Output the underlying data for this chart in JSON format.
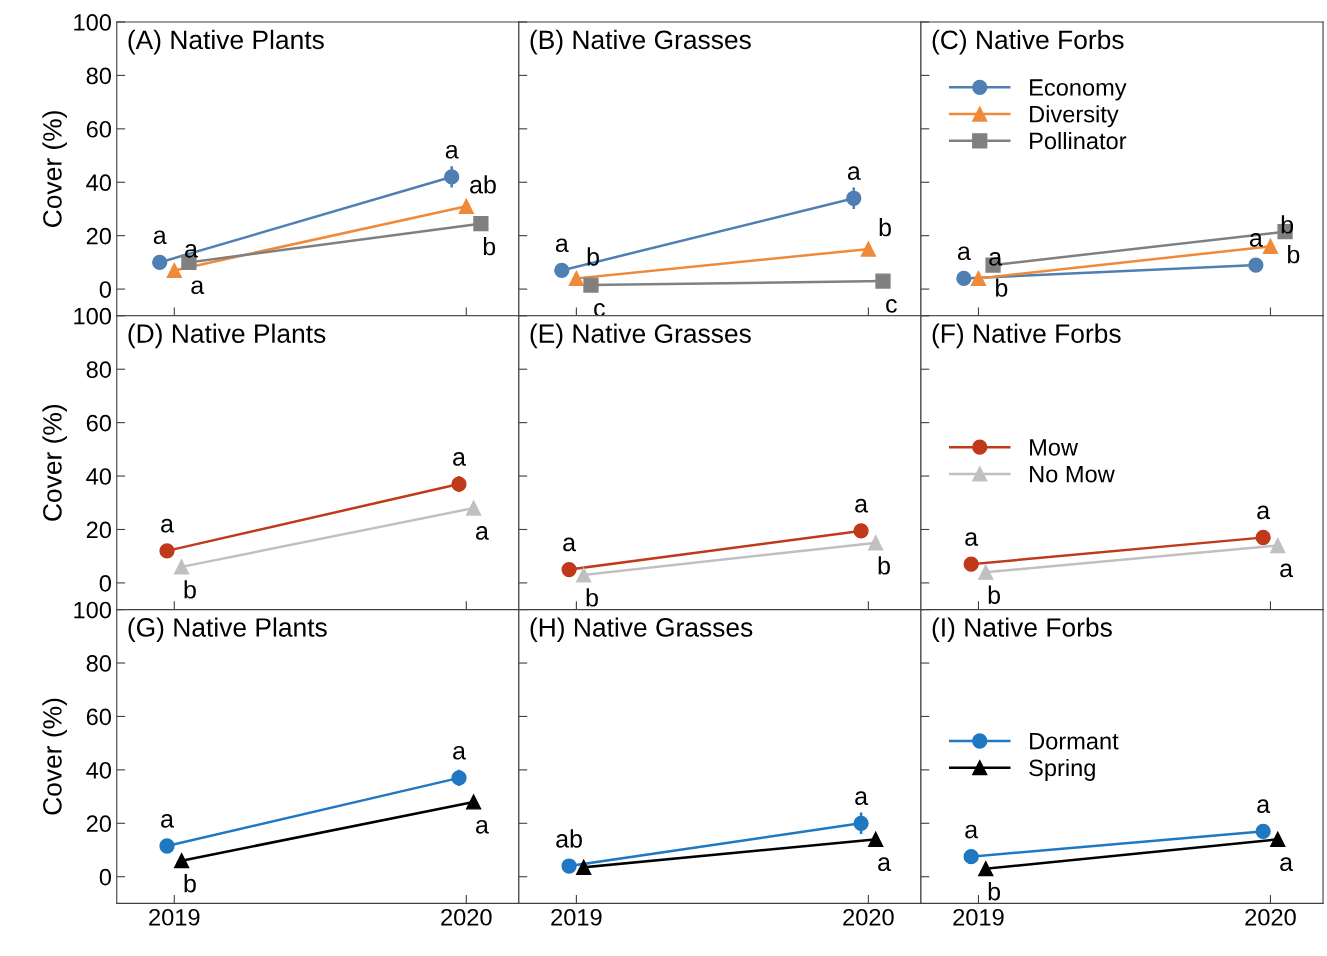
{
  "chart_data": [
    {
      "type": "line",
      "title": "(A) Native Plants",
      "ylabel": "Cover (%)",
      "categories": [
        "2019",
        "2020"
      ],
      "ylim": [
        -10,
        100
      ],
      "yticks": [
        0,
        20,
        40,
        60,
        80,
        100
      ],
      "tick_labels": "y",
      "legend": false,
      "series": [
        {
          "color": "#4f7fb3",
          "marker": "circle",
          "values": [
            10,
            42
          ],
          "errors": [
            null,
            4
          ],
          "value_labels": [
            "a",
            "a"
          ]
        },
        {
          "color": "#ef8a3a",
          "marker": "triangle",
          "values": [
            7,
            31
          ],
          "errors": [
            null,
            2
          ],
          "value_labels": [
            "a",
            "ab"
          ]
        },
        {
          "color": "#808080",
          "marker": "square",
          "values": [
            10,
            24.5
          ],
          "value_labels": [
            "a",
            "b"
          ]
        }
      ]
    },
    {
      "type": "line",
      "title": "(B) Native Grasses",
      "categories": [
        "2019",
        "2020"
      ],
      "ylim": [
        -10,
        100
      ],
      "yticks": [
        0,
        20,
        40,
        60,
        80,
        100
      ],
      "tick_labels": false,
      "legend": false,
      "series": [
        {
          "color": "#4f7fb3",
          "marker": "circle",
          "values": [
            7,
            34
          ],
          "errors": [
            null,
            4
          ],
          "value_labels": [
            "a",
            "a"
          ]
        },
        {
          "color": "#ef8a3a",
          "marker": "triangle",
          "values": [
            4,
            15
          ],
          "errors": [
            null,
            2
          ],
          "value_labels": [
            "b",
            "b"
          ]
        },
        {
          "color": "#808080",
          "marker": "square",
          "values": [
            1.5,
            3
          ],
          "value_labels": [
            "c",
            "c"
          ]
        }
      ]
    },
    {
      "type": "line",
      "title": "(C) Native Forbs",
      "categories": [
        "2019",
        "2020"
      ],
      "ylim": [
        -10,
        100
      ],
      "yticks": [
        0,
        20,
        40,
        60,
        80,
        100
      ],
      "tick_labels": false,
      "legend": "top left",
      "series": [
        {
          "name": "Economy",
          "color": "#4f7fb3",
          "marker": "circle",
          "values": [
            4,
            9
          ],
          "value_labels": [
            "a",
            "a"
          ]
        },
        {
          "name": "Diversity",
          "color": "#ef8a3a",
          "marker": "triangle",
          "values": [
            4,
            16
          ],
          "value_labels": [
            "a",
            "b"
          ]
        },
        {
          "name": "Pollinator",
          "color": "#808080",
          "marker": "square",
          "values": [
            9,
            21.5
          ],
          "value_labels": [
            "b",
            "b"
          ]
        }
      ]
    },
    {
      "type": "line",
      "title": "(D) Native Plants",
      "ylabel": "Cover (%)",
      "categories": [
        "2019",
        "2020"
      ],
      "ylim": [
        -10,
        100
      ],
      "yticks": [
        0,
        20,
        40,
        60,
        80,
        100
      ],
      "tick_labels": "y",
      "legend": false,
      "series": [
        {
          "color": "#c0391b",
          "marker": "circle",
          "values": [
            12,
            37
          ],
          "errors": [
            null,
            3
          ],
          "value_labels": [
            "a",
            "a"
          ]
        },
        {
          "color": "#c0c0c0",
          "marker": "triangle",
          "values": [
            6,
            28
          ],
          "value_labels": [
            "b",
            "a"
          ]
        }
      ]
    },
    {
      "type": "line",
      "title": "(E) Native Grasses",
      "categories": [
        "2019",
        "2020"
      ],
      "ylim": [
        -10,
        100
      ],
      "yticks": [
        0,
        20,
        40,
        60,
        80,
        100
      ],
      "tick_labels": false,
      "legend": false,
      "series": [
        {
          "color": "#c0391b",
          "marker": "circle",
          "values": [
            5,
            19.5
          ],
          "value_labels": [
            "a",
            "a"
          ]
        },
        {
          "color": "#c0c0c0",
          "marker": "triangle",
          "values": [
            3,
            15
          ],
          "value_labels": [
            "b",
            "b"
          ]
        }
      ]
    },
    {
      "type": "line",
      "title": "(F) Native Forbs",
      "categories": [
        "2019",
        "2020"
      ],
      "ylim": [
        -10,
        100
      ],
      "yticks": [
        0,
        20,
        40,
        60,
        80,
        100
      ],
      "tick_labels": false,
      "legend": "left",
      "series": [
        {
          "name": "Mow",
          "color": "#c0391b",
          "marker": "circle",
          "values": [
            7,
            17
          ],
          "value_labels": [
            "a",
            "a"
          ]
        },
        {
          "name": "No Mow",
          "color": "#c0c0c0",
          "marker": "triangle",
          "values": [
            4,
            14
          ],
          "value_labels": [
            "b",
            "a"
          ]
        }
      ]
    },
    {
      "type": "line",
      "title": "(G) Native Plants",
      "ylabel": "Cover (%)",
      "categories": [
        "2019",
        "2020"
      ],
      "ylim": [
        -10,
        100
      ],
      "yticks": [
        0,
        20,
        40,
        60,
        80,
        100
      ],
      "legend": false,
      "series": [
        {
          "color": "#1f78c1",
          "marker": "circle",
          "values": [
            11.5,
            37
          ],
          "errors": [
            null,
            3
          ],
          "value_labels": [
            "a",
            "a"
          ]
        },
        {
          "color": "#000000",
          "marker": "triangle",
          "values": [
            6,
            28
          ],
          "value_labels": [
            "b",
            "a"
          ]
        }
      ]
    },
    {
      "type": "line",
      "title": "(H) Native Grasses",
      "categories": [
        "2019",
        "2020"
      ],
      "ylim": [
        -10,
        100
      ],
      "yticks": [
        0,
        20,
        40,
        60,
        80,
        100
      ],
      "tick_labels": "x",
      "legend": false,
      "series": [
        {
          "color": "#1f78c1",
          "marker": "circle",
          "values": [
            4,
            20
          ],
          "errors": [
            null,
            4
          ],
          "value_labels": [
            "ab",
            "a"
          ]
        },
        {
          "color": "#000000",
          "marker": "triangle",
          "values": [
            3.5,
            14
          ],
          "value_labels": [
            null,
            "a"
          ]
        }
      ]
    },
    {
      "type": "line",
      "title": "(I) Native Forbs",
      "categories": [
        "2019",
        "2020"
      ],
      "ylim": [
        -10,
        100
      ],
      "yticks": [
        0,
        20,
        40,
        60,
        80,
        100
      ],
      "tick_labels": "x",
      "legend": "left",
      "series": [
        {
          "name": "Dormant",
          "color": "#1f78c1",
          "marker": "circle",
          "values": [
            7.5,
            17
          ],
          "value_labels": [
            "a",
            "a"
          ]
        },
        {
          "name": "Spring",
          "color": "#000000",
          "marker": "triangle",
          "values": [
            3,
            14
          ],
          "value_labels": [
            "b",
            "a"
          ]
        }
      ]
    }
  ]
}
